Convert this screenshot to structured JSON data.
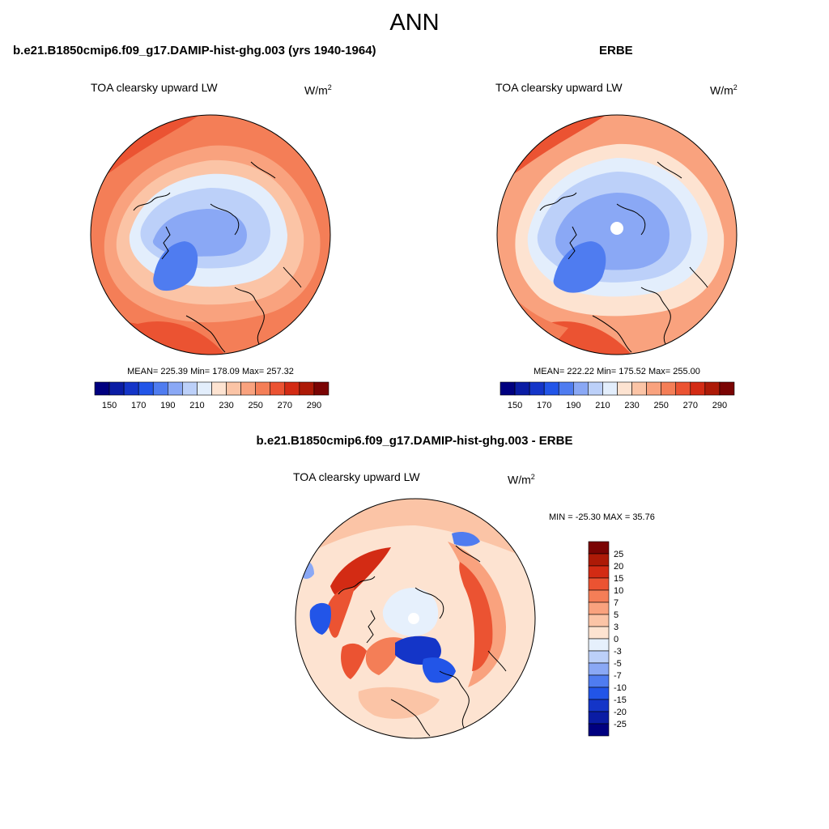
{
  "page_title": "ANN",
  "panel_left": {
    "case": "b.e21.B1850cmip6.f09_g17.DAMIP-hist-ghg.003 (yrs 1940-1964)",
    "variable": "TOA clearsky upward LW",
    "units_base": "W/m",
    "units_exp": "2",
    "stats": "MEAN= 225.39  Min= 178.09  Max= 257.32"
  },
  "panel_right": {
    "case": "ERBE",
    "variable": "TOA clearsky upward LW",
    "units_base": "W/m",
    "units_exp": "2",
    "stats": "MEAN= 222.22  Min= 175.52  Max= 255.00"
  },
  "panel_diff": {
    "case": "b.e21.B1850cmip6.f09_g17.DAMIP-hist-ghg.003 - ERBE",
    "variable": "TOA clearsky upward LW",
    "units_base": "W/m",
    "units_exp": "2",
    "stats": "MIN = -25.30 MAX =  35.76"
  },
  "colors": {
    "abs_scale": [
      "#00007f",
      "#0a1ca4",
      "#1435c8",
      "#2255e8",
      "#4f7cf0",
      "#8aa8f5",
      "#bcd0f9",
      "#e3eefc",
      "#fde3d1",
      "#fbc4a6",
      "#f9a27e",
      "#f47e57",
      "#eb5332",
      "#d32b14",
      "#ad1a07",
      "#7a0403"
    ],
    "diff_scale": [
      "#000080",
      "#0a1ca4",
      "#1435c8",
      "#2255e8",
      "#4f7cf0",
      "#8aa8f5",
      "#bcd0f9",
      "#e6f0fc",
      "#fde3d1",
      "#fbc4a6",
      "#f9a27e",
      "#f47e57",
      "#eb5332",
      "#d32b14",
      "#ad1a07",
      "#7a0403"
    ],
    "coastline": "#000000",
    "missing": "#ffffff"
  },
  "chart_data": [
    {
      "type": "heatmap",
      "name_ref": "panel_left",
      "projection": "north-polar-stereographic",
      "colorbar": {
        "orientation": "horizontal",
        "levels": [
          150,
          160,
          170,
          180,
          190,
          200,
          210,
          220,
          230,
          240,
          250,
          260,
          270,
          280,
          290
        ],
        "tick_labels": [
          "150",
          "170",
          "190",
          "210",
          "230",
          "250",
          "270",
          "290"
        ]
      },
      "field_summary": {
        "mean": 225.39,
        "min": 178.09,
        "max": 257.32
      }
    },
    {
      "type": "heatmap",
      "name_ref": "panel_right",
      "projection": "north-polar-stereographic",
      "colorbar": {
        "orientation": "horizontal",
        "levels": [
          150,
          160,
          170,
          180,
          190,
          200,
          210,
          220,
          230,
          240,
          250,
          260,
          270,
          280,
          290
        ],
        "tick_labels": [
          "150",
          "170",
          "190",
          "210",
          "230",
          "250",
          "270",
          "290"
        ]
      },
      "field_summary": {
        "mean": 222.22,
        "min": 175.52,
        "max": 255.0
      }
    },
    {
      "type": "heatmap",
      "name_ref": "panel_diff",
      "projection": "north-polar-stereographic",
      "colorbar": {
        "orientation": "vertical",
        "levels": [
          -25,
          -20,
          -15,
          -10,
          -7,
          -5,
          -3,
          0,
          3,
          5,
          7,
          10,
          15,
          20,
          25
        ],
        "tick_labels": [
          "25",
          "20",
          "15",
          "10",
          "7",
          "5",
          "3",
          "0",
          "-3",
          "-5",
          "-7",
          "-10",
          "-15",
          "-20",
          "-25"
        ]
      },
      "field_summary": {
        "min": -25.3,
        "max": 35.76
      }
    }
  ]
}
